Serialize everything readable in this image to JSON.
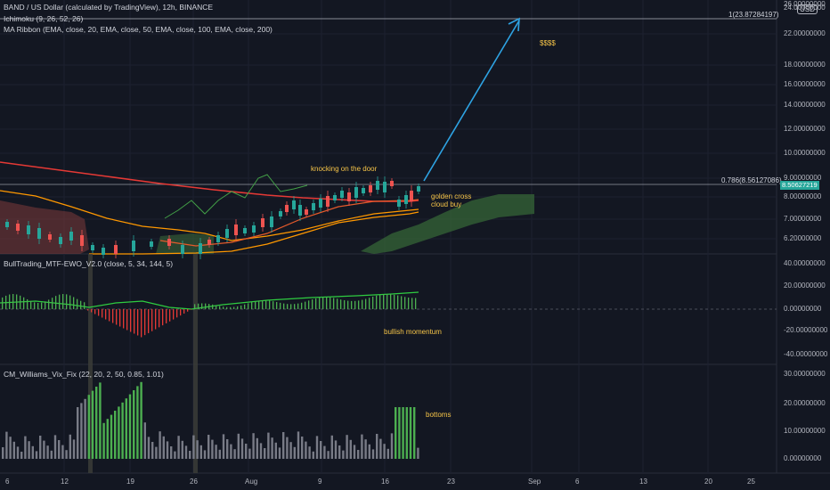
{
  "legends": {
    "main_title": "BAND / US Dollar (calculated by TradingView), 12h, BINANCE",
    "ichimoku": "Ichimoku (9, 26, 52, 26)",
    "ma_ribbon": "MA Ribbon (EMA, close, 20, EMA, close, 50, EMA, close, 100, EMA, close, 200)",
    "ewo": "BullTrading_MTF-EWO_V2.0 (close, 5, 34, 144, 5)",
    "vix": "CM_Williams_Vix_Fix (22, 20, 2, 50, 0.85, 1.01)"
  },
  "currency_button": "USD",
  "annotations": {
    "dollars": "$$$$",
    "knocking": "knocking on the door",
    "golden_cross": "golden cross",
    "cloud_buy": "cloud buy",
    "bullish_momentum": "bullish momentum",
    "bottoms": "bottoms"
  },
  "fib_labels": {
    "fib_1": "1(23.87284197)",
    "fib_786": "0.786(8.56127086)"
  },
  "price_tags": {
    "current_price": "8.50627219"
  },
  "price_axis": [
    "26.00000000",
    "24.00000000",
    "22.00000000",
    "18.00000000",
    "16.00000000",
    "14.00000000",
    "12.00000000",
    "10.00000000",
    "9.00000000",
    "8.00000000",
    "7.00000000",
    "6.20000000"
  ],
  "ewo_axis": [
    "40.00000000",
    "20.00000000",
    "0.00000000",
    "-20.00000000",
    "-40.00000000"
  ],
  "vix_axis": [
    "30.00000000",
    "20.00000000",
    "10.00000000",
    "0.00000000"
  ],
  "time_axis": [
    "6",
    "12",
    "19",
    "26",
    "Aug",
    "9",
    "16",
    "23",
    "Sep",
    "6",
    "13",
    "20",
    "25"
  ],
  "colors": {
    "background": "#131722",
    "up_candle": "#26a69a",
    "down_candle": "#ef5350",
    "arrow": "#2ea3e3",
    "annotation": "#f7c548",
    "ewo_up": "#4caf50",
    "ewo_down": "#e53935",
    "vix_green": "#4caf50",
    "vix_gray": "#787b86"
  }
}
